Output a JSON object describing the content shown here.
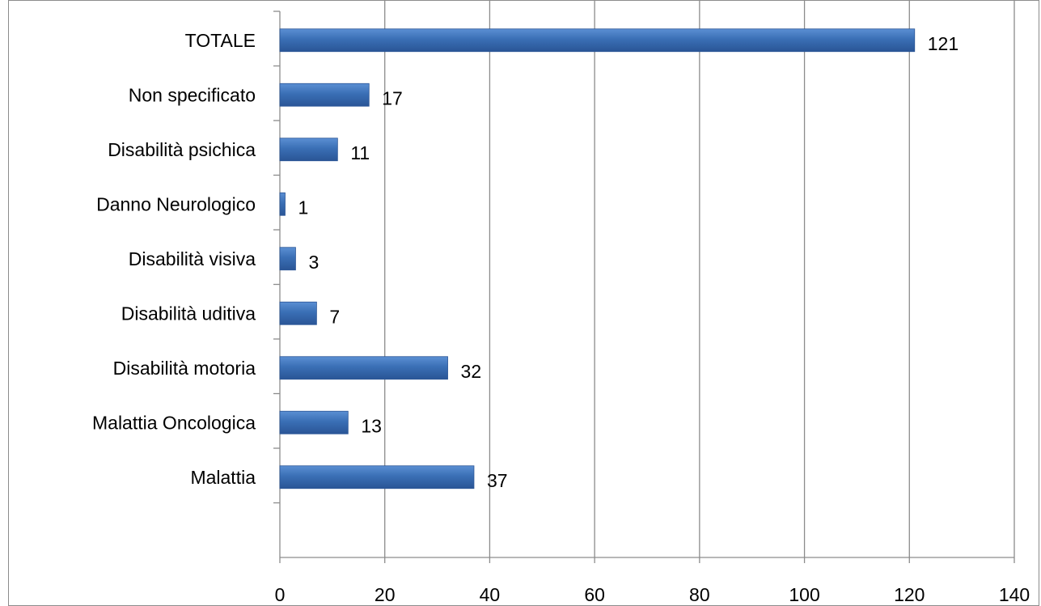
{
  "chart_data": {
    "type": "bar",
    "orientation": "horizontal",
    "categories": [
      "Malattia",
      "Malattia Oncologica",
      "Disabilità motoria",
      "Disabilità uditiva",
      "Disabilità visiva",
      "Danno Neurologico",
      "Disabilità psichica",
      "Non specificato",
      "TOTALE"
    ],
    "values": [
      37,
      13,
      32,
      7,
      3,
      1,
      11,
      17,
      121
    ],
    "xlim": [
      0,
      140
    ],
    "xticks": [
      0,
      20,
      40,
      60,
      80,
      100,
      120,
      140
    ],
    "grid": "vertical",
    "legend": "none",
    "data_labels": true,
    "colors": {
      "bar": "#3a6fb5",
      "bar_dark": "#2a5596",
      "bar_light": "#5b8fd3",
      "grid": "#8c8c8c",
      "axis": "#8c8c8c"
    }
  }
}
